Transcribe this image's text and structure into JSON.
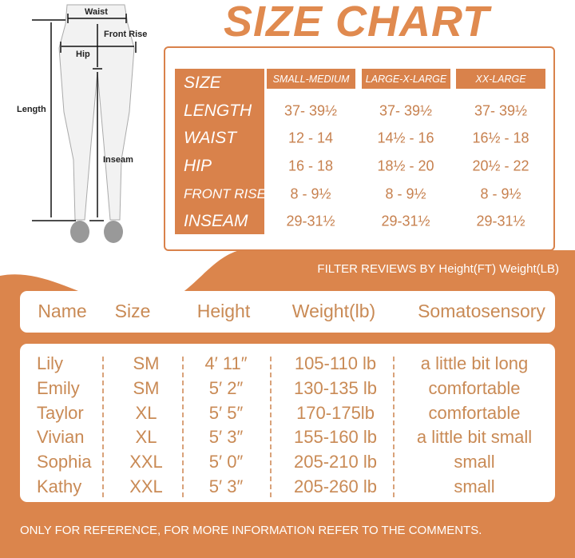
{
  "title": "SIZE CHART",
  "colors": {
    "accent": "#d9824b",
    "text_orange": "#c98a55",
    "white": "#ffffff"
  },
  "diagram": {
    "labels": {
      "waist": "Waist",
      "front_rise": "Front Rise",
      "hip": "Hip",
      "length": "Length",
      "inseam": "Inseam"
    }
  },
  "size_chart": {
    "corner": "SIZE",
    "columns": [
      "SMALL-MEDIUM",
      "LARGE-X-LARGE",
      "XX-LARGE"
    ],
    "rows": [
      {
        "label": "LENGTH",
        "values": [
          "37- 39½",
          "37- 39½",
          "37- 39½"
        ]
      },
      {
        "label": "WAIST",
        "values": [
          "12 - 14",
          "14½ - 16",
          "16½ - 18"
        ]
      },
      {
        "label": "HIP",
        "values": [
          "16 - 18",
          "18½ - 20",
          "20½ - 22"
        ]
      },
      {
        "label": "FRONT RISE",
        "values": [
          "8 - 9½",
          "8 - 9½",
          "8 - 9½"
        ]
      },
      {
        "label": "INSEAM",
        "values": [
          "29-31½",
          "29-31½",
          "29-31½"
        ]
      }
    ]
  },
  "reviews": {
    "filter_text": "FILTER REVIEWS BY Height(FT) Weight(LB)",
    "headers": [
      "Name",
      "Size",
      "Height",
      "Weight(lb)",
      "Somatosensory"
    ],
    "rows": [
      [
        "Lily",
        "SM",
        "4′ 11″",
        "105-110 lb",
        "a little bit long"
      ],
      [
        "Emily",
        "SM",
        "5′ 2″",
        "130-135 lb",
        "comfortable"
      ],
      [
        "Taylor",
        "XL",
        "5′ 5″",
        "170-175lb",
        "comfortable"
      ],
      [
        "Vivian",
        "XL",
        "5′ 3″",
        "155-160 lb",
        "a little bit small"
      ],
      [
        "Sophia",
        "XXL",
        "5′ 0″",
        "205-210 lb",
        "small"
      ],
      [
        "Kathy",
        "XXL",
        "5′ 3″",
        "205-260 lb",
        "small"
      ]
    ]
  },
  "footer": "ONLY FOR REFERENCE, FOR MORE INFORMATION REFER TO THE COMMENTS."
}
